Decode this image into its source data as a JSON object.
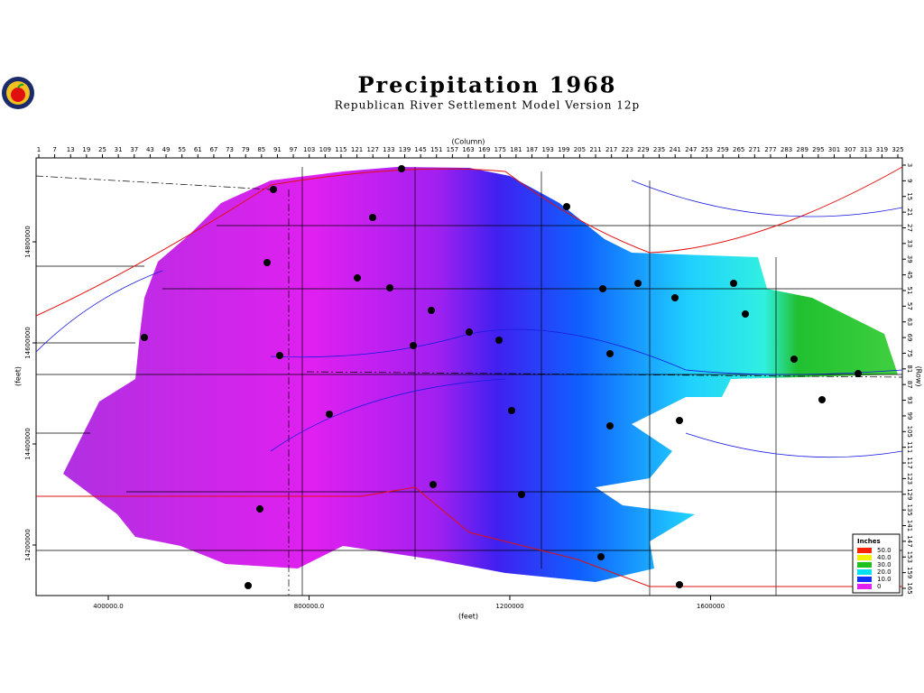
{
  "header": {
    "title": "Precipitation 1968",
    "subtitle": "Republican River Settlement Model Version 12p"
  },
  "map": {
    "column_label": "(Column)",
    "row_label": "(Row)",
    "x_label": "(feet)",
    "y_label": "(feet)",
    "columns": [
      1,
      7,
      13,
      19,
      25,
      31,
      37,
      43,
      49,
      55,
      61,
      67,
      73,
      79,
      85,
      91,
      97,
      103,
      109,
      115,
      121,
      127,
      133,
      139,
      145,
      151,
      157,
      163,
      169,
      175,
      181,
      187,
      193,
      199,
      205,
      211,
      217,
      223,
      229,
      235,
      241,
      247,
      253,
      259,
      265,
      271,
      277,
      283,
      289,
      295,
      301,
      307,
      313,
      319,
      325
    ],
    "rows": [
      3,
      9,
      15,
      21,
      27,
      33,
      39,
      45,
      51,
      57,
      63,
      69,
      75,
      81,
      87,
      93,
      99,
      105,
      111,
      117,
      123,
      129,
      135,
      141,
      147,
      153,
      159,
      165
    ],
    "x_ticks": [
      {
        "value": 400000,
        "label": "400000.0"
      },
      {
        "value": 800000,
        "label": "800000.0"
      },
      1200000,
      1600000
    ],
    "y_ticks": [
      14800000,
      14600000,
      14400000,
      14200000
    ],
    "legend": {
      "title": "Inches",
      "items": [
        {
          "value": 50,
          "label": "50.0",
          "color": "#ff2000"
        },
        {
          "value": 40,
          "label": "40.0",
          "color": "#f0f000"
        },
        {
          "value": 30,
          "label": "30.0",
          "color": "#20c020"
        },
        {
          "value": 20,
          "label": "20.0",
          "color": "#00e0f0"
        },
        {
          "value": 10,
          "label": "10.0",
          "color": "#1030ff"
        },
        {
          "value": 0,
          "color": "#e020f0"
        }
      ]
    }
  }
}
